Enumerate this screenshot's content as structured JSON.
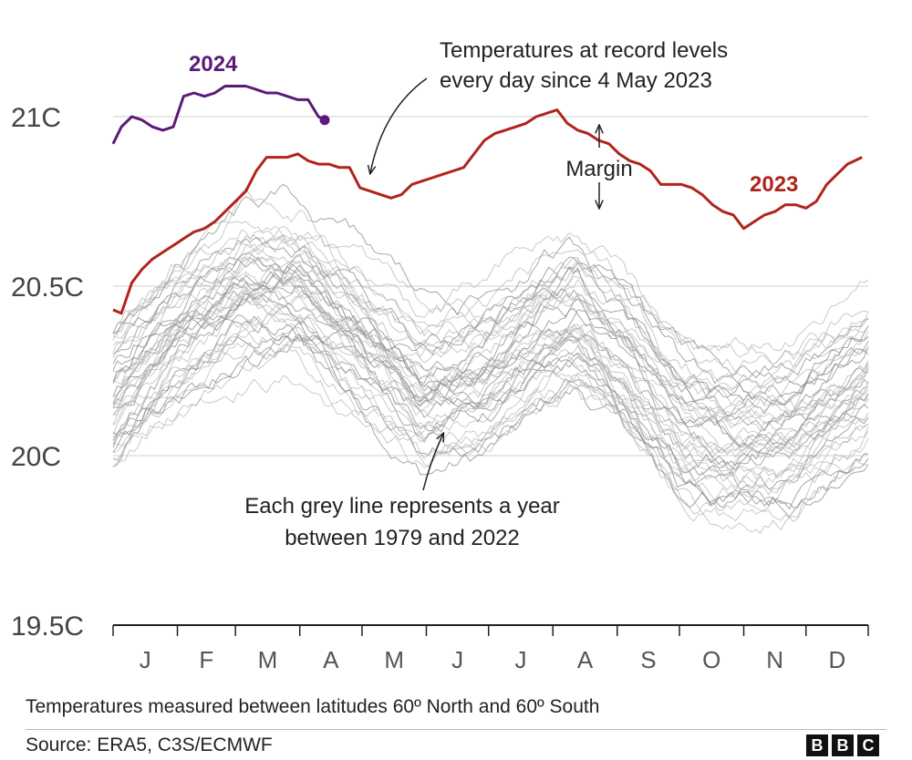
{
  "chart_data": {
    "type": "line",
    "title": "",
    "xlabel": "",
    "ylabel": "",
    "ylim": [
      19.5,
      21.4
    ],
    "yticks": [
      19.5,
      20.0,
      20.5,
      21.0
    ],
    "ytick_labels": [
      "19.5C",
      "20C",
      "20.5C",
      "21C"
    ],
    "months": [
      "J",
      "F",
      "M",
      "A",
      "M",
      "J",
      "J",
      "A",
      "S",
      "O",
      "N",
      "D"
    ],
    "series": [
      {
        "name": "2024",
        "color": "#5b1a7b",
        "points": [
          [
            1,
            20.92
          ],
          [
            5,
            20.97
          ],
          [
            10,
            21.0
          ],
          [
            15,
            20.99
          ],
          [
            20,
            20.97
          ],
          [
            25,
            20.96
          ],
          [
            30,
            20.97
          ],
          [
            35,
            21.06
          ],
          [
            40,
            21.07
          ],
          [
            45,
            21.06
          ],
          [
            50,
            21.07
          ],
          [
            55,
            21.09
          ],
          [
            60,
            21.09
          ],
          [
            65,
            21.09
          ],
          [
            70,
            21.08
          ],
          [
            75,
            21.07
          ],
          [
            80,
            21.07
          ],
          [
            85,
            21.06
          ],
          [
            90,
            21.05
          ],
          [
            95,
            21.05
          ],
          [
            100,
            21.0
          ],
          [
            103,
            20.99
          ]
        ]
      },
      {
        "name": "2023",
        "color": "#b0241c",
        "points": [
          [
            1,
            20.43
          ],
          [
            5,
            20.42
          ],
          [
            10,
            20.51
          ],
          [
            15,
            20.55
          ],
          [
            20,
            20.58
          ],
          [
            25,
            20.6
          ],
          [
            30,
            20.62
          ],
          [
            35,
            20.64
          ],
          [
            40,
            20.66
          ],
          [
            45,
            20.67
          ],
          [
            50,
            20.69
          ],
          [
            55,
            20.72
          ],
          [
            60,
            20.75
          ],
          [
            65,
            20.78
          ],
          [
            70,
            20.84
          ],
          [
            75,
            20.88
          ],
          [
            80,
            20.88
          ],
          [
            85,
            20.88
          ],
          [
            90,
            20.89
          ],
          [
            95,
            20.87
          ],
          [
            100,
            20.86
          ],
          [
            105,
            20.86
          ],
          [
            110,
            20.85
          ],
          [
            115,
            20.85
          ],
          [
            120,
            20.79
          ],
          [
            125,
            20.78
          ],
          [
            130,
            20.77
          ],
          [
            135,
            20.76
          ],
          [
            140,
            20.77
          ],
          [
            145,
            20.8
          ],
          [
            150,
            20.81
          ],
          [
            155,
            20.82
          ],
          [
            160,
            20.83
          ],
          [
            165,
            20.84
          ],
          [
            170,
            20.85
          ],
          [
            175,
            20.89
          ],
          [
            180,
            20.93
          ],
          [
            185,
            20.95
          ],
          [
            190,
            20.96
          ],
          [
            195,
            20.97
          ],
          [
            200,
            20.98
          ],
          [
            205,
            21.0
          ],
          [
            210,
            21.01
          ],
          [
            215,
            21.02
          ],
          [
            220,
            20.98
          ],
          [
            225,
            20.96
          ],
          [
            230,
            20.95
          ],
          [
            235,
            20.93
          ],
          [
            240,
            20.92
          ],
          [
            245,
            20.89
          ],
          [
            250,
            20.87
          ],
          [
            255,
            20.86
          ],
          [
            260,
            20.84
          ],
          [
            265,
            20.8
          ],
          [
            270,
            20.8
          ],
          [
            275,
            20.8
          ],
          [
            280,
            20.79
          ],
          [
            285,
            20.77
          ],
          [
            290,
            20.74
          ],
          [
            295,
            20.72
          ],
          [
            300,
            20.71
          ],
          [
            305,
            20.67
          ],
          [
            310,
            20.69
          ],
          [
            315,
            20.71
          ],
          [
            320,
            20.72
          ],
          [
            325,
            20.74
          ],
          [
            330,
            20.74
          ],
          [
            335,
            20.73
          ],
          [
            340,
            20.75
          ],
          [
            345,
            20.8
          ],
          [
            350,
            20.83
          ],
          [
            355,
            20.86
          ],
          [
            362,
            20.88
          ]
        ]
      }
    ],
    "grey_range": "Each grey line represents a year between 1979 and 2022",
    "grey_color": "#9a9a9a",
    "grey_years": [
      1979,
      2022
    ],
    "annotations": [
      {
        "id": "record",
        "lines": [
          "Temperatures at record levels",
          "every day since 4 May 2023"
        ]
      },
      {
        "id": "margin",
        "lines": [
          "Margin"
        ]
      },
      {
        "id": "grey",
        "lines": [
          "Each grey line represents a year",
          "between 1979 and 2022"
        ]
      }
    ],
    "series_labels": {
      "2024": "2024",
      "2023": "2023"
    }
  },
  "footer": {
    "note": "Temperatures measured between latitudes 60º North and 60º South",
    "source": "Source: ERA5, C3S/ECMWF",
    "logo": [
      "B",
      "B",
      "C"
    ]
  }
}
